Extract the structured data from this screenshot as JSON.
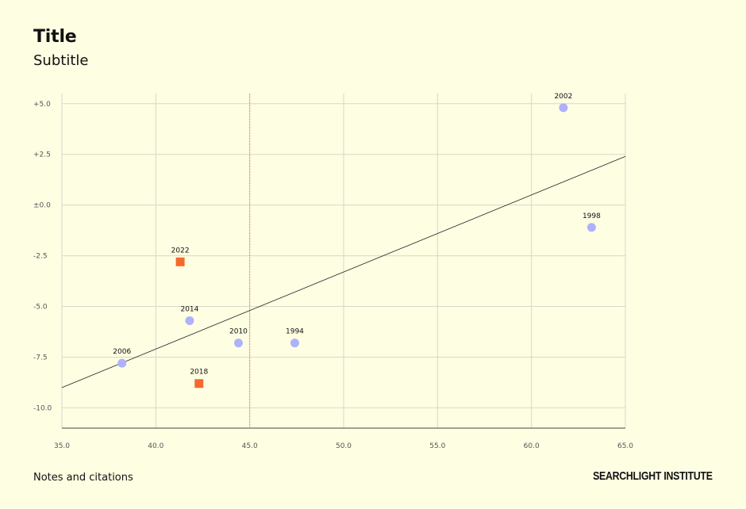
{
  "header": {
    "title": "Title",
    "subtitle": "Subtitle"
  },
  "footer": {
    "notes": "Notes and citations",
    "brand": "SEARCHLIGHT INSTITUTE"
  },
  "colors": {
    "background": "#FEFEE3",
    "circle_series": "#AEB1FB",
    "square_series": "#F5692E",
    "reference_line": "#F08A6A",
    "trend_line": "#222222",
    "grid": "#D8D8C8"
  },
  "chart_data": {
    "type": "scatter",
    "xlim": [
      35,
      65
    ],
    "ylim": [
      -11,
      5.5
    ],
    "x_ticks": [
      35.0,
      40.0,
      45.0,
      50.0,
      55.0,
      60.0,
      65.0
    ],
    "y_ticks": [
      5.0,
      2.5,
      0.0,
      -2.5,
      -5.0,
      -7.5,
      -10.0
    ],
    "x_tick_labels": [
      "35.0",
      "40.0",
      "45.0",
      "50.0",
      "55.0",
      "60.0",
      "65.0"
    ],
    "y_tick_labels": [
      "+5.0",
      "+2.5",
      "±0.0",
      "-2.5",
      "-5.0",
      "-7.5",
      "-10.0"
    ],
    "grid": true,
    "vertical_reference_x": 45.0,
    "trend_line": {
      "x": [
        35,
        65
      ],
      "y": [
        -9.0,
        2.4
      ]
    },
    "series": [
      {
        "marker": "circle",
        "points": [
          {
            "label": "2002",
            "x": 61.7,
            "y": 4.8
          },
          {
            "label": "1998",
            "x": 63.2,
            "y": -1.1
          },
          {
            "label": "2014",
            "x": 41.8,
            "y": -5.7
          },
          {
            "label": "2010",
            "x": 44.4,
            "y": -6.8
          },
          {
            "label": "1994",
            "x": 47.4,
            "y": -6.8
          },
          {
            "label": "2006",
            "x": 38.2,
            "y": -7.8
          }
        ]
      },
      {
        "marker": "square",
        "points": [
          {
            "label": "2022",
            "x": 41.3,
            "y": -2.8
          },
          {
            "label": "2018",
            "x": 42.3,
            "y": -8.8
          }
        ]
      }
    ]
  }
}
